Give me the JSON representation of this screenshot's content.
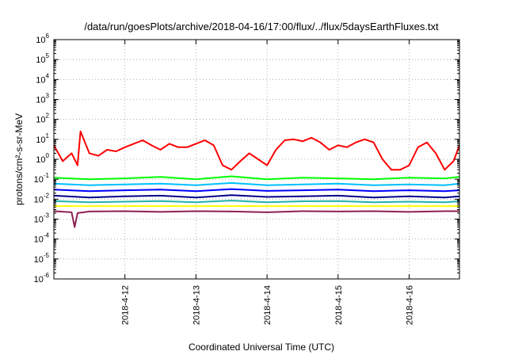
{
  "chart_data": {
    "type": "line",
    "title": "/data/run/goesPlots/archive/2018-04-16/17:00/flux/../flux/5daysEarthFluxes.txt",
    "xlabel": "Coordinated Universal Time (UTC)",
    "ylabel": "protons/cm²-s-sr-MeV",
    "yscale": "log",
    "ylim": [
      1e-06,
      1000000.0
    ],
    "xlim": [
      "2018-04-11T00:00",
      "2018-04-16T17:00"
    ],
    "x_ticks": [
      "2018-04-12T00:00",
      "2018-04-13T00:00",
      "2018-04-14T00:00",
      "2018-04-15T00:00",
      "2018-04-16T00:00"
    ],
    "x_tick_labels": [
      "2018-4-12",
      "2018-4-13",
      "2018-4-14",
      "2018-4-15",
      "2018-4-16"
    ],
    "y_tick_exponents": [
      -6,
      -5,
      -4,
      -3,
      -2,
      -1,
      0,
      1,
      2,
      3,
      4,
      5,
      6
    ],
    "grid": true,
    "legend": "none",
    "series": [
      {
        "color": "#ff0000",
        "x": [
          "2018-04-11T00:00",
          "2018-04-11T03:00",
          "2018-04-11T06:00",
          "2018-04-11T08:00",
          "2018-04-11T09:00",
          "2018-04-11T12:00",
          "2018-04-11T15:00",
          "2018-04-11T18:00",
          "2018-04-11T21:00",
          "2018-04-12T00:00",
          "2018-04-12T03:00",
          "2018-04-12T06:00",
          "2018-04-12T09:00",
          "2018-04-12T12:00",
          "2018-04-12T15:00",
          "2018-04-12T18:00",
          "2018-04-12T21:00",
          "2018-04-13T00:00",
          "2018-04-13T03:00",
          "2018-04-13T06:00",
          "2018-04-13T09:00",
          "2018-04-13T12:00",
          "2018-04-13T15:00",
          "2018-04-13T18:00",
          "2018-04-13T21:00",
          "2018-04-14T00:00",
          "2018-04-14T03:00",
          "2018-04-14T06:00",
          "2018-04-14T09:00",
          "2018-04-14T12:00",
          "2018-04-14T15:00",
          "2018-04-14T18:00",
          "2018-04-14T21:00",
          "2018-04-15T00:00",
          "2018-04-15T03:00",
          "2018-04-15T06:00",
          "2018-04-15T09:00",
          "2018-04-15T12:00",
          "2018-04-15T15:00",
          "2018-04-15T18:00",
          "2018-04-15T21:00",
          "2018-04-16T00:00",
          "2018-04-16T03:00",
          "2018-04-16T06:00",
          "2018-04-16T09:00",
          "2018-04-16T12:00",
          "2018-04-16T15:00",
          "2018-04-16T17:00"
        ],
        "y": [
          5,
          0.8,
          2,
          0.5,
          25,
          2,
          1.5,
          3,
          2.5,
          4,
          6,
          9,
          5,
          3,
          6,
          4,
          4,
          6,
          9,
          5,
          0.5,
          0.3,
          0.8,
          2,
          1,
          0.5,
          3,
          9,
          10,
          8,
          12,
          7,
          3,
          5,
          4,
          7,
          10,
          7,
          1,
          0.3,
          0.3,
          0.5,
          4,
          7,
          2,
          0.3,
          0.8,
          5
        ]
      },
      {
        "color": "#00ff00",
        "x": [
          "2018-04-11T00:00",
          "2018-04-11T12:00",
          "2018-04-12T00:00",
          "2018-04-12T12:00",
          "2018-04-13T00:00",
          "2018-04-13T12:00",
          "2018-04-14T00:00",
          "2018-04-14T12:00",
          "2018-04-15T00:00",
          "2018-04-15T12:00",
          "2018-04-16T00:00",
          "2018-04-16T12:00",
          "2018-04-16T17:00"
        ],
        "y": [
          0.12,
          0.1,
          0.11,
          0.13,
          0.1,
          0.14,
          0.1,
          0.12,
          0.11,
          0.1,
          0.12,
          0.11,
          0.13
        ]
      },
      {
        "color": "#00bfff",
        "x": [
          "2018-04-11T00:00",
          "2018-04-11T12:00",
          "2018-04-12T00:00",
          "2018-04-12T12:00",
          "2018-04-13T00:00",
          "2018-04-13T12:00",
          "2018-04-14T00:00",
          "2018-04-14T12:00",
          "2018-04-15T00:00",
          "2018-04-15T12:00",
          "2018-04-16T00:00",
          "2018-04-16T12:00",
          "2018-04-16T17:00"
        ],
        "y": [
          0.06,
          0.05,
          0.055,
          0.06,
          0.05,
          0.065,
          0.05,
          0.055,
          0.06,
          0.05,
          0.055,
          0.05,
          0.06
        ]
      },
      {
        "color": "#0000ff",
        "x": [
          "2018-04-11T00:00",
          "2018-04-11T12:00",
          "2018-04-12T00:00",
          "2018-04-12T12:00",
          "2018-04-13T00:00",
          "2018-04-13T12:00",
          "2018-04-14T00:00",
          "2018-04-14T12:00",
          "2018-04-15T00:00",
          "2018-04-15T12:00",
          "2018-04-16T00:00",
          "2018-04-16T12:00",
          "2018-04-16T17:00"
        ],
        "y": [
          0.03,
          0.025,
          0.028,
          0.03,
          0.025,
          0.032,
          0.026,
          0.028,
          0.03,
          0.025,
          0.028,
          0.025,
          0.028
        ]
      },
      {
        "color": "#00008b",
        "x": [
          "2018-04-11T00:00",
          "2018-04-11T12:00",
          "2018-04-12T00:00",
          "2018-04-12T12:00",
          "2018-04-13T00:00",
          "2018-04-13T12:00",
          "2018-04-14T00:00",
          "2018-04-14T12:00",
          "2018-04-15T00:00",
          "2018-04-15T12:00",
          "2018-04-16T00:00",
          "2018-04-16T12:00",
          "2018-04-16T17:00"
        ],
        "y": [
          0.015,
          0.012,
          0.014,
          0.015,
          0.012,
          0.016,
          0.013,
          0.014,
          0.015,
          0.012,
          0.014,
          0.012,
          0.014
        ]
      },
      {
        "color": "#20b2aa",
        "x": [
          "2018-04-11T00:00",
          "2018-04-11T12:00",
          "2018-04-12T00:00",
          "2018-04-12T12:00",
          "2018-04-13T00:00",
          "2018-04-13T12:00",
          "2018-04-14T00:00",
          "2018-04-14T12:00",
          "2018-04-15T00:00",
          "2018-04-15T12:00",
          "2018-04-16T00:00",
          "2018-04-16T12:00",
          "2018-04-16T17:00"
        ],
        "y": [
          0.008,
          0.007,
          0.0075,
          0.008,
          0.007,
          0.0085,
          0.007,
          0.0078,
          0.008,
          0.007,
          0.0075,
          0.007,
          0.0078
        ]
      },
      {
        "color": "#ffff00",
        "x": [
          "2018-04-11T00:00",
          "2018-04-12T00:00",
          "2018-04-13T00:00",
          "2018-04-14T00:00",
          "2018-04-15T00:00",
          "2018-04-16T00:00",
          "2018-04-16T17:00"
        ],
        "y": [
          0.0045,
          0.0045,
          0.0045,
          0.0045,
          0.0045,
          0.0045,
          0.0045
        ]
      },
      {
        "color": "#8b2252",
        "x": [
          "2018-04-11T00:00",
          "2018-04-11T06:00",
          "2018-04-11T07:00",
          "2018-04-11T08:00",
          "2018-04-11T12:00",
          "2018-04-12T00:00",
          "2018-04-12T12:00",
          "2018-04-13T00:00",
          "2018-04-13T12:00",
          "2018-04-14T00:00",
          "2018-04-14T12:00",
          "2018-04-15T00:00",
          "2018-04-15T12:00",
          "2018-04-16T00:00",
          "2018-04-16T12:00",
          "2018-04-16T17:00"
        ],
        "y": [
          0.0025,
          0.0022,
          0.0004,
          0.002,
          0.0024,
          0.0025,
          0.0023,
          0.0025,
          0.0024,
          0.0022,
          0.0025,
          0.0024,
          0.0025,
          0.0023,
          0.0025,
          0.0025
        ]
      }
    ]
  }
}
